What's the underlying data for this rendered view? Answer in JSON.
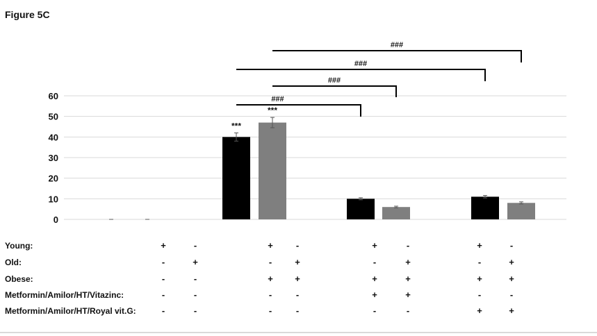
{
  "figure_label": "Figure 5C",
  "chart_data": {
    "type": "bar",
    "ylim": [
      0,
      60
    ],
    "yticks": [
      0,
      10,
      20,
      30,
      40,
      50,
      60
    ],
    "grid": true,
    "series_colors": [
      "#000000",
      "#7f7f7f"
    ],
    "groups": [
      {
        "values": [
          0,
          0
        ],
        "errors": [
          0,
          0
        ],
        "labels": [
          "",
          ""
        ]
      },
      {
        "values": [
          40,
          47
        ],
        "errors": [
          2,
          2.5
        ],
        "labels": [
          "***",
          "***"
        ]
      },
      {
        "values": [
          10,
          6
        ],
        "errors": [
          0.5,
          0.4
        ],
        "labels": [
          "",
          ""
        ]
      },
      {
        "values": [
          11,
          8
        ],
        "errors": [
          0.6,
          0.5
        ],
        "labels": [
          "",
          ""
        ]
      }
    ],
    "comparisons": [
      {
        "from": [
          1,
          0
        ],
        "to": [
          2,
          0
        ],
        "label": "###"
      },
      {
        "from": [
          1,
          1
        ],
        "to": [
          2,
          1
        ],
        "label": "###"
      },
      {
        "from": [
          1,
          0
        ],
        "to": [
          3,
          0
        ],
        "label": "###"
      },
      {
        "from": [
          1,
          1
        ],
        "to": [
          3,
          1
        ],
        "label": "###"
      }
    ]
  },
  "table": {
    "rows": [
      {
        "label": "Young:",
        "signs": [
          "+",
          "-",
          "+",
          "-",
          "+",
          "-",
          "+",
          "-"
        ]
      },
      {
        "label": "Old:",
        "signs": [
          "-",
          "+",
          "-",
          "+",
          "-",
          "+",
          "-",
          "+"
        ]
      },
      {
        "label": "Obese:",
        "signs": [
          "-",
          "-",
          "+",
          "+",
          "+",
          "+",
          "+",
          "+"
        ]
      },
      {
        "label": "Metformin/Amilor/HT/Vitazinc:",
        "signs": [
          "-",
          "-",
          "-",
          "-",
          "+",
          "+",
          "-",
          "-"
        ]
      },
      {
        "label": "Metformin/Amilor/HT/Royal vit.G:",
        "signs": [
          "-",
          "-",
          "-",
          "-",
          "-",
          "-",
          "+",
          "+"
        ]
      }
    ]
  }
}
